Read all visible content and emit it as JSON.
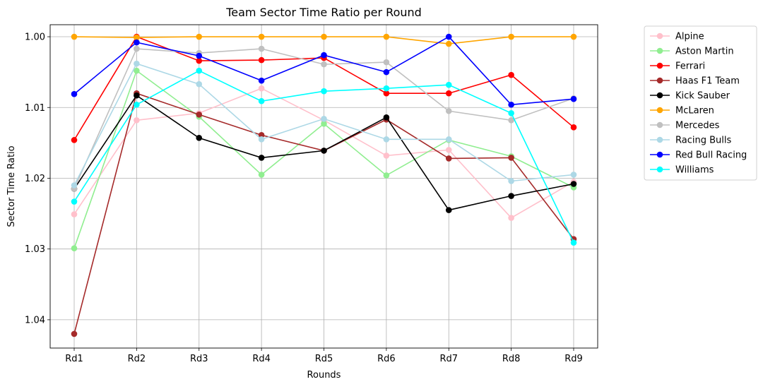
{
  "chart_data": {
    "type": "line",
    "title": "Team Sector Time Ratio per Round",
    "xlabel": "Rounds",
    "ylabel": "Sector Time Ratio",
    "categories": [
      "Rd1",
      "Rd2",
      "Rd3",
      "Rd4",
      "Rd5",
      "Rd6",
      "Rd7",
      "Rd8",
      "Rd9"
    ],
    "y_axis": "inverted",
    "ylim": [
      1.0,
      1.044
    ],
    "y_ticks": [
      {
        "value": 1.0,
        "label": "1.00"
      },
      {
        "value": 1.01,
        "label": "1.01"
      },
      {
        "value": 1.02,
        "label": "1.02"
      },
      {
        "value": 1.03,
        "label": "1.03"
      },
      {
        "value": 1.04,
        "label": "1.04"
      }
    ],
    "grid": true,
    "legend_position": "right, outside plot",
    "series": [
      {
        "name": "Alpine",
        "color": "#ffc0cb",
        "values": [
          1.0251,
          1.0118,
          1.0108,
          1.0073,
          1.0118,
          1.0168,
          1.016,
          1.0256,
          1.0205
        ]
      },
      {
        "name": "Aston Martin",
        "color": "#90ee90",
        "values": [
          1.0299,
          1.0048,
          1.0113,
          1.0195,
          1.0123,
          1.0196,
          1.0146,
          1.0169,
          1.0213
        ]
      },
      {
        "name": "Ferrari",
        "color": "#ff0000",
        "values": [
          1.0146,
          1.0,
          1.0034,
          1.0033,
          1.003,
          1.008,
          1.008,
          1.0054,
          1.0128
        ]
      },
      {
        "name": "Haas F1 Team",
        "color": "#a52a2a",
        "values": [
          1.042,
          1.008,
          1.011,
          1.0139,
          1.0161,
          1.0117,
          1.0172,
          1.0171,
          1.0286
        ]
      },
      {
        "name": "Kick Sauber",
        "color": "#000000",
        "values": [
          1.0215,
          1.0083,
          1.0143,
          1.0171,
          1.0161,
          1.0114,
          1.0245,
          1.0225,
          1.0208
        ]
      },
      {
        "name": "McLaren",
        "color": "#ffa500",
        "values": [
          1.0,
          1.0001,
          1.0,
          1.0,
          1.0,
          1.0,
          1.001,
          1.0,
          1.0
        ]
      },
      {
        "name": "Mercedes",
        "color": "#c0c0c0",
        "values": [
          1.0215,
          1.0017,
          1.0023,
          1.0017,
          1.0039,
          1.0036,
          1.0105,
          1.0118,
          1.0087
        ]
      },
      {
        "name": "Racing Bulls",
        "color": "#add8e6",
        "values": [
          1.021,
          1.0038,
          1.0067,
          1.0145,
          1.0116,
          1.0145,
          1.0145,
          1.0204,
          1.0195
        ]
      },
      {
        "name": "Red Bull Racing",
        "color": "#0000ff",
        "values": [
          1.0081,
          1.0008,
          1.0027,
          1.0062,
          1.0026,
          1.005,
          1.0,
          1.0096,
          1.0088
        ]
      },
      {
        "name": "Williams",
        "color": "#00ffff",
        "values": [
          1.0233,
          1.0096,
          1.0048,
          1.0091,
          1.0077,
          1.0073,
          1.0068,
          1.0108,
          1.0291
        ]
      }
    ]
  }
}
